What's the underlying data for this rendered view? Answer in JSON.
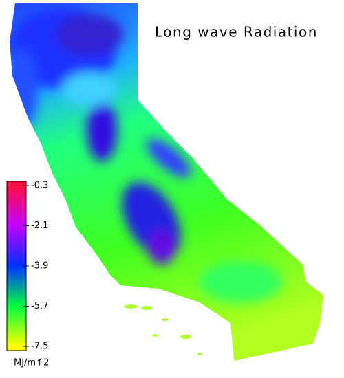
{
  "title": "Long wave Radiation",
  "colorbar": {
    "unit": "MJ/m↑2",
    "lim": [
      -7.5,
      -0.3
    ],
    "ticks": [
      -0.3,
      -2.1,
      -3.9,
      -5.7,
      -7.5
    ],
    "colors": [
      "#ff1040",
      "#c000ff",
      "#0030ff",
      "#00ff40",
      "#ffff00"
    ]
  }
}
